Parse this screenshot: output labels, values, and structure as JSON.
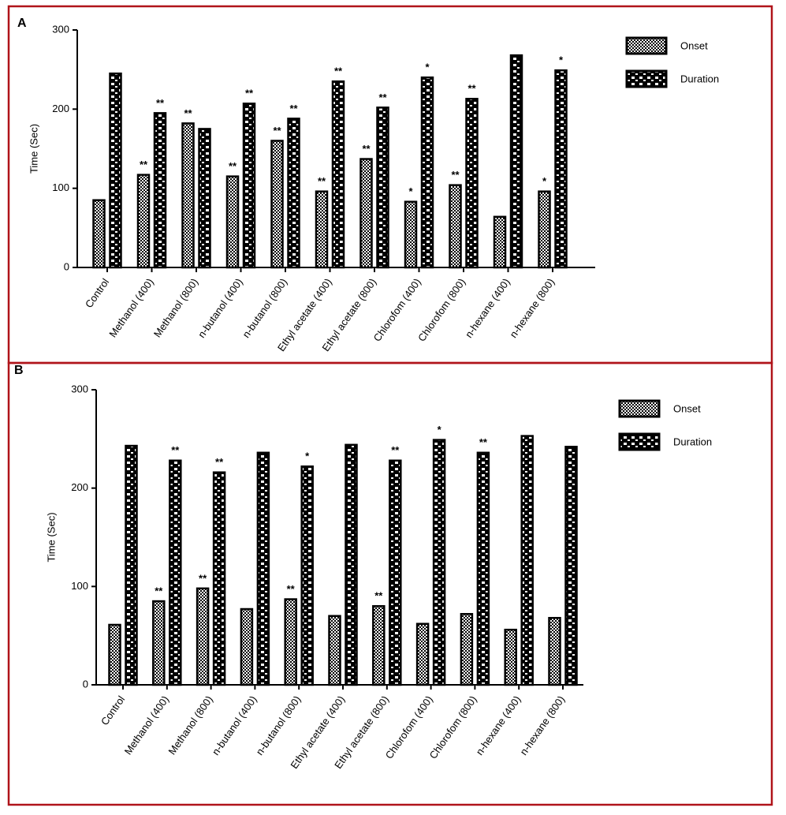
{
  "chart_data": [
    {
      "type": "bar",
      "panel_label": "A",
      "y_label": "Time (Sec)",
      "categories": [
        "Control",
        "Methanol (400)",
        "Methanol (800)",
        "n-butanol (400)",
        "n-butanol (800)",
        "Ethyl acetate (400)",
        "Ethyl acetate (800)",
        "Chlorofom (400)",
        "Chlorofom (800)",
        "n-hexane (400)",
        "n-hexane (800)"
      ],
      "series": [
        {
          "name": "Onset",
          "color": "#000000",
          "values": [
            85,
            117,
            182,
            115,
            160,
            96,
            137,
            83,
            104,
            64,
            96
          ],
          "annotations": [
            null,
            "**",
            "**",
            "**",
            "**",
            "**",
            "**",
            "*",
            "**",
            null,
            "*"
          ]
        },
        {
          "name": "Duration",
          "color": "#000000",
          "values": [
            245,
            195,
            175,
            207,
            188,
            235,
            202,
            240,
            213,
            268,
            249
          ],
          "annotations": [
            null,
            "**",
            null,
            "**",
            "**",
            "**",
            "**",
            "*",
            "**",
            null,
            "*"
          ]
        }
      ],
      "ylim": [
        0,
        300
      ],
      "yticks": [
        0,
        100,
        200,
        300
      ],
      "legend": "upper right"
    },
    {
      "type": "bar",
      "panel_label": "B",
      "y_label": "Time (Sec)",
      "categories": [
        "Control",
        "Methanol (400)",
        "Methanol (800)",
        "n-butanol (400)",
        "n-butanol (800)",
        "Ethyl acetate (400)",
        "Ethyl acetate (800)",
        "Chlorofom (400)",
        "Chlorofom (800)",
        "n-hexane (400)",
        "n-hexane (800)"
      ],
      "series": [
        {
          "name": "Onset",
          "color": "#000000",
          "values": [
            61,
            85,
            98,
            77,
            87,
            70,
            80,
            62,
            72,
            56,
            68
          ],
          "annotations": [
            null,
            "**",
            "**",
            null,
            "**",
            null,
            "**",
            null,
            null,
            null,
            null
          ]
        },
        {
          "name": "Duration",
          "color": "#000000",
          "values": [
            243,
            228,
            216,
            236,
            222,
            244,
            228,
            249,
            236,
            253,
            242
          ],
          "annotations": [
            null,
            "**",
            "**",
            null,
            "*",
            null,
            "**",
            "*",
            "**",
            null,
            null
          ]
        }
      ],
      "ylim": [
        0,
        300
      ],
      "yticks": [
        0,
        100,
        200,
        300
      ],
      "legend": "upper right"
    }
  ]
}
